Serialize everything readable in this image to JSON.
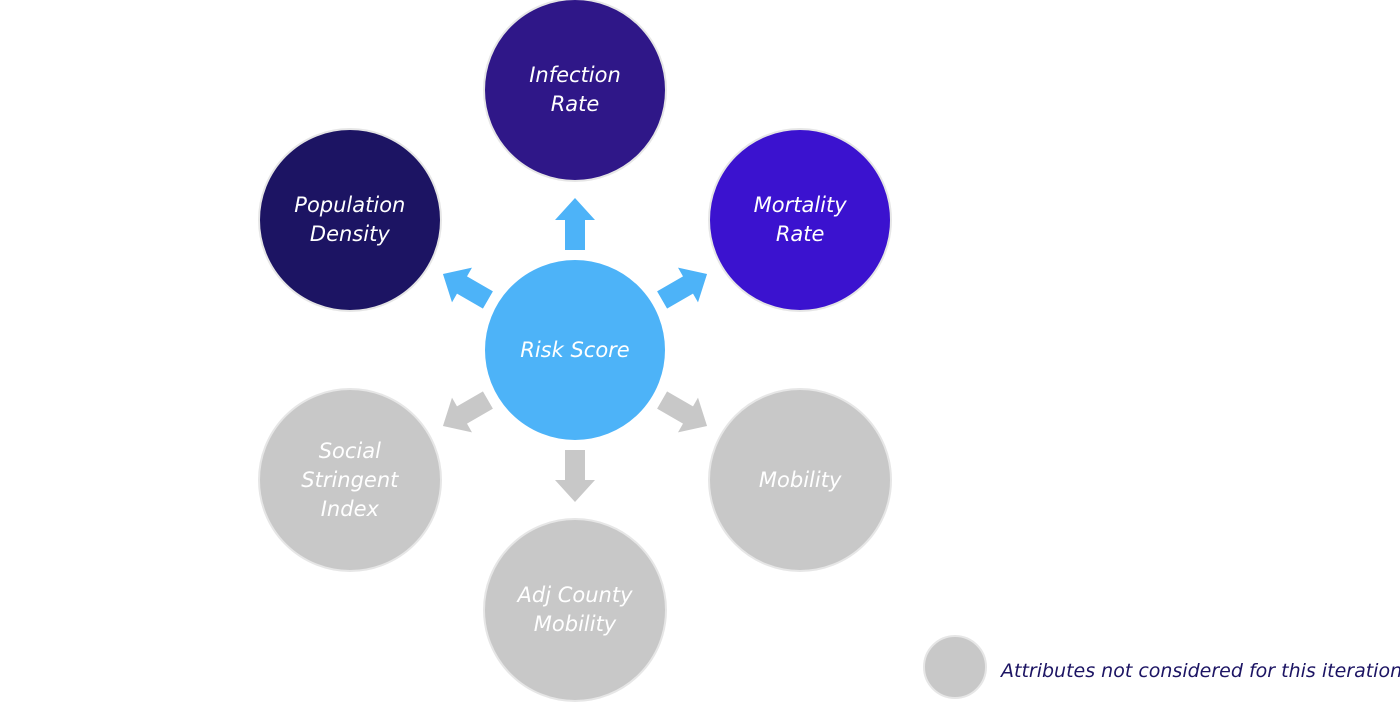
{
  "center": {
    "lines": [
      "Risk Score"
    ],
    "color": "#4db3f8"
  },
  "nodes": [
    {
      "id": "infection-rate",
      "lines": [
        "Infection",
        "Rate"
      ],
      "color": "#2f1788",
      "considered": true
    },
    {
      "id": "mortality-rate",
      "lines": [
        "Mortality",
        "Rate"
      ],
      "color": "#3b12cf",
      "considered": true
    },
    {
      "id": "mobility",
      "lines": [
        "Mobility"
      ],
      "color": "#c8c8c8",
      "considered": false
    },
    {
      "id": "adj-county-mobility",
      "lines": [
        "Adj County",
        "Mobility"
      ],
      "color": "#c8c8c8",
      "considered": false
    },
    {
      "id": "social-stringent-index",
      "lines": [
        "Social",
        "Stringent",
        "Index"
      ],
      "color": "#c8c8c8",
      "considered": false
    },
    {
      "id": "population-density",
      "lines": [
        "Population",
        "Density"
      ],
      "color": "#1c1463",
      "considered": true
    }
  ],
  "arrows": [
    {
      "target": "infection-rate",
      "color": "#4db3f8"
    },
    {
      "target": "mortality-rate",
      "color": "#4db3f8"
    },
    {
      "target": "mobility",
      "color": "#c8c8c8"
    },
    {
      "target": "adj-county-mobility",
      "color": "#c8c8c8"
    },
    {
      "target": "social-stringent-index",
      "color": "#c8c8c8"
    },
    {
      "target": "population-density",
      "color": "#4db3f8"
    }
  ],
  "legend": {
    "swatch_color": "#c8c8c8",
    "text": "Attributes not considered for this iteration",
    "text_color": "#1c1463"
  }
}
